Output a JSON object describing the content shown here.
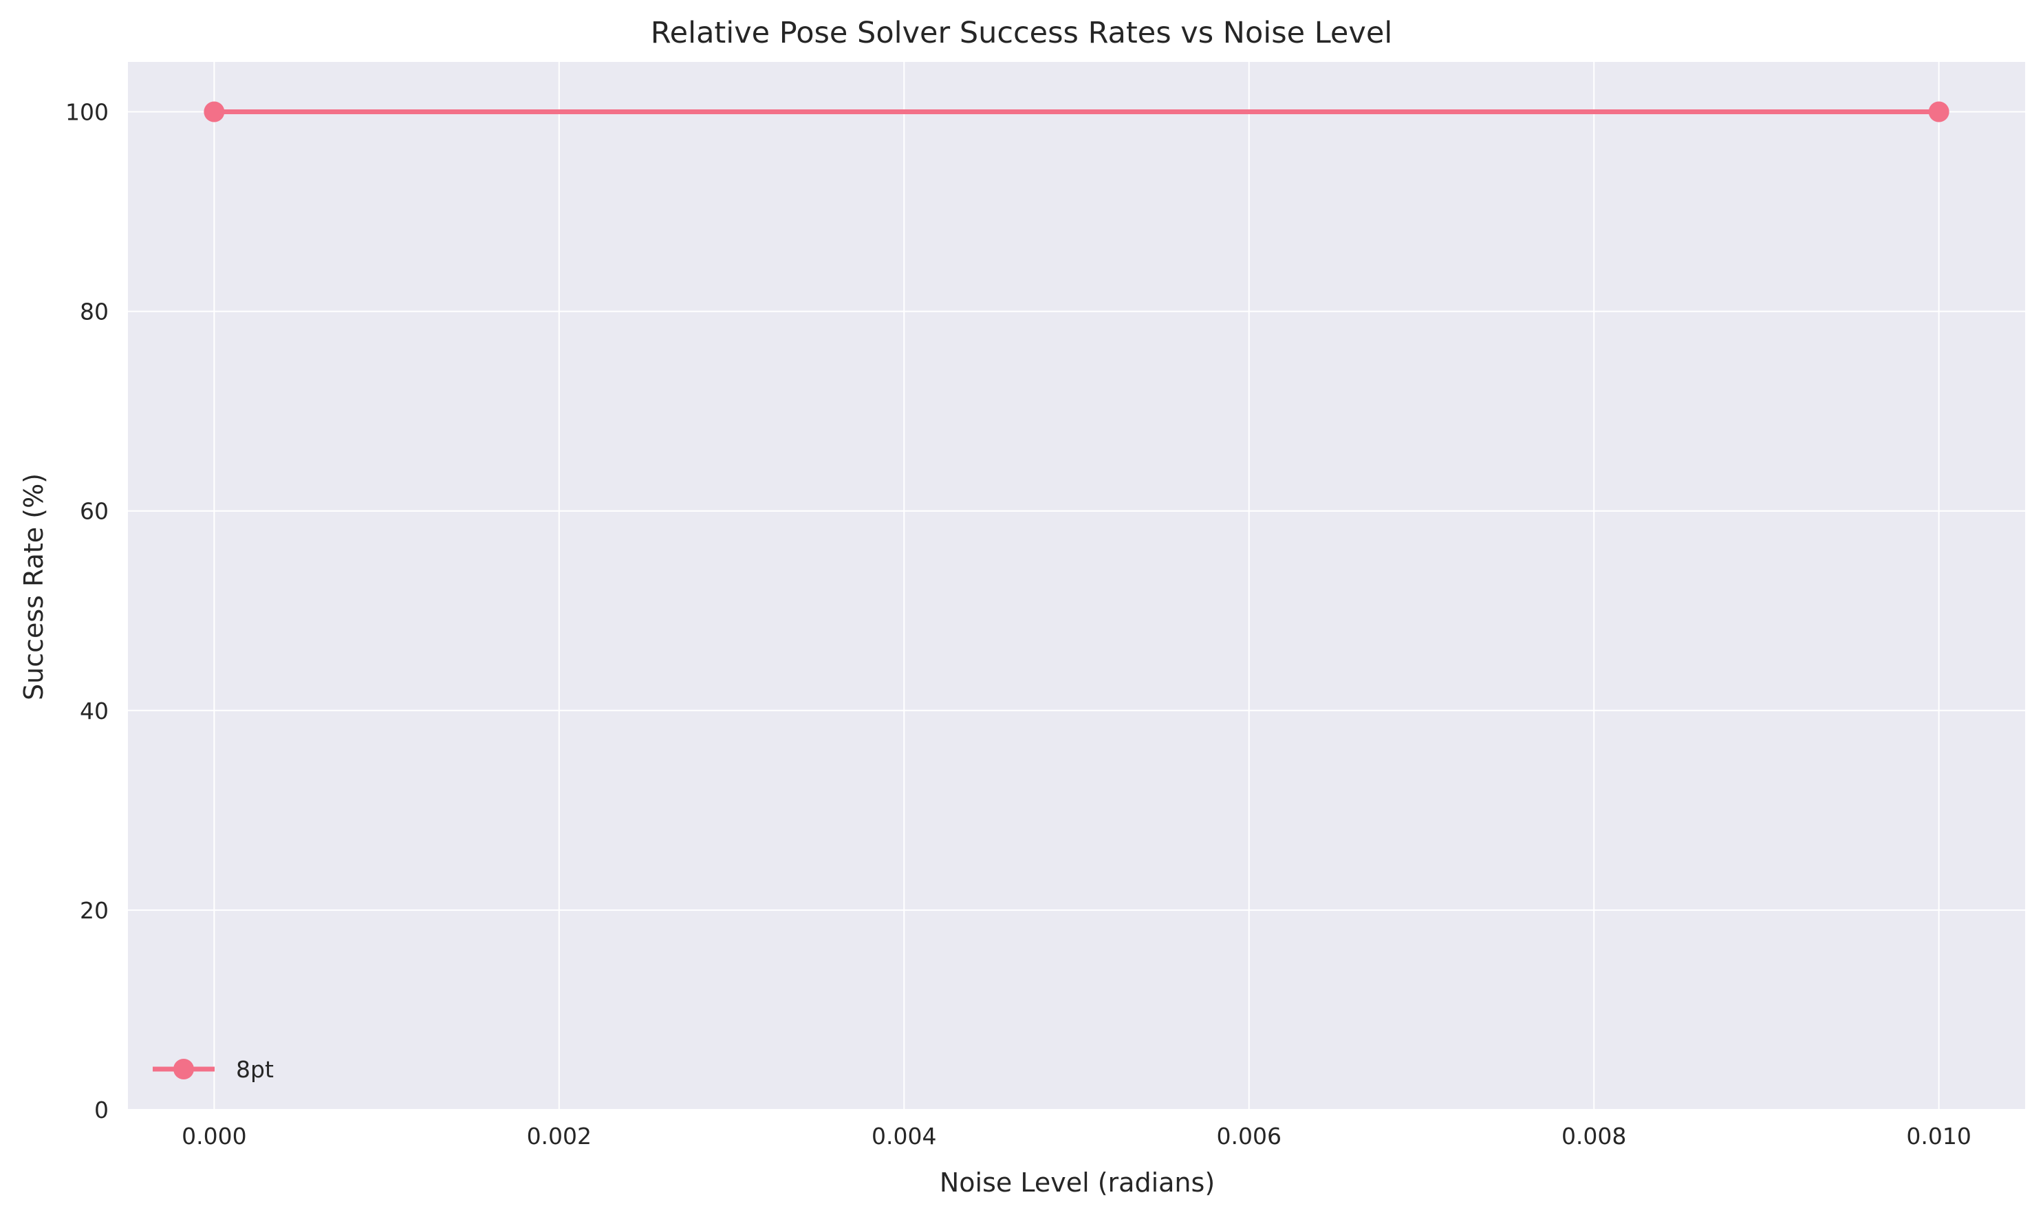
{
  "chart_data": {
    "type": "line",
    "title": "Relative Pose Solver Success Rates vs Noise Level",
    "xlabel": "Noise Level (radians)",
    "ylabel": "Success Rate (%)",
    "xlim": [
      -0.0005,
      0.0105
    ],
    "ylim": [
      0,
      105
    ],
    "x_ticks": [
      0.0,
      0.002,
      0.004,
      0.006,
      0.008,
      0.01
    ],
    "x_tick_labels": [
      "0.000",
      "0.002",
      "0.004",
      "0.006",
      "0.008",
      "0.010"
    ],
    "y_ticks": [
      0,
      20,
      40,
      60,
      80,
      100
    ],
    "y_tick_labels": [
      "0",
      "20",
      "40",
      "60",
      "80",
      "100"
    ],
    "grid": true,
    "legend_position": "lower-left",
    "background_color": "#eaeaf2",
    "grid_color": "#ffffff",
    "series": [
      {
        "name": "8pt",
        "color": "#f37088",
        "marker": "circle",
        "x": [
          0.0,
          0.01
        ],
        "y": [
          100,
          100
        ]
      }
    ]
  }
}
